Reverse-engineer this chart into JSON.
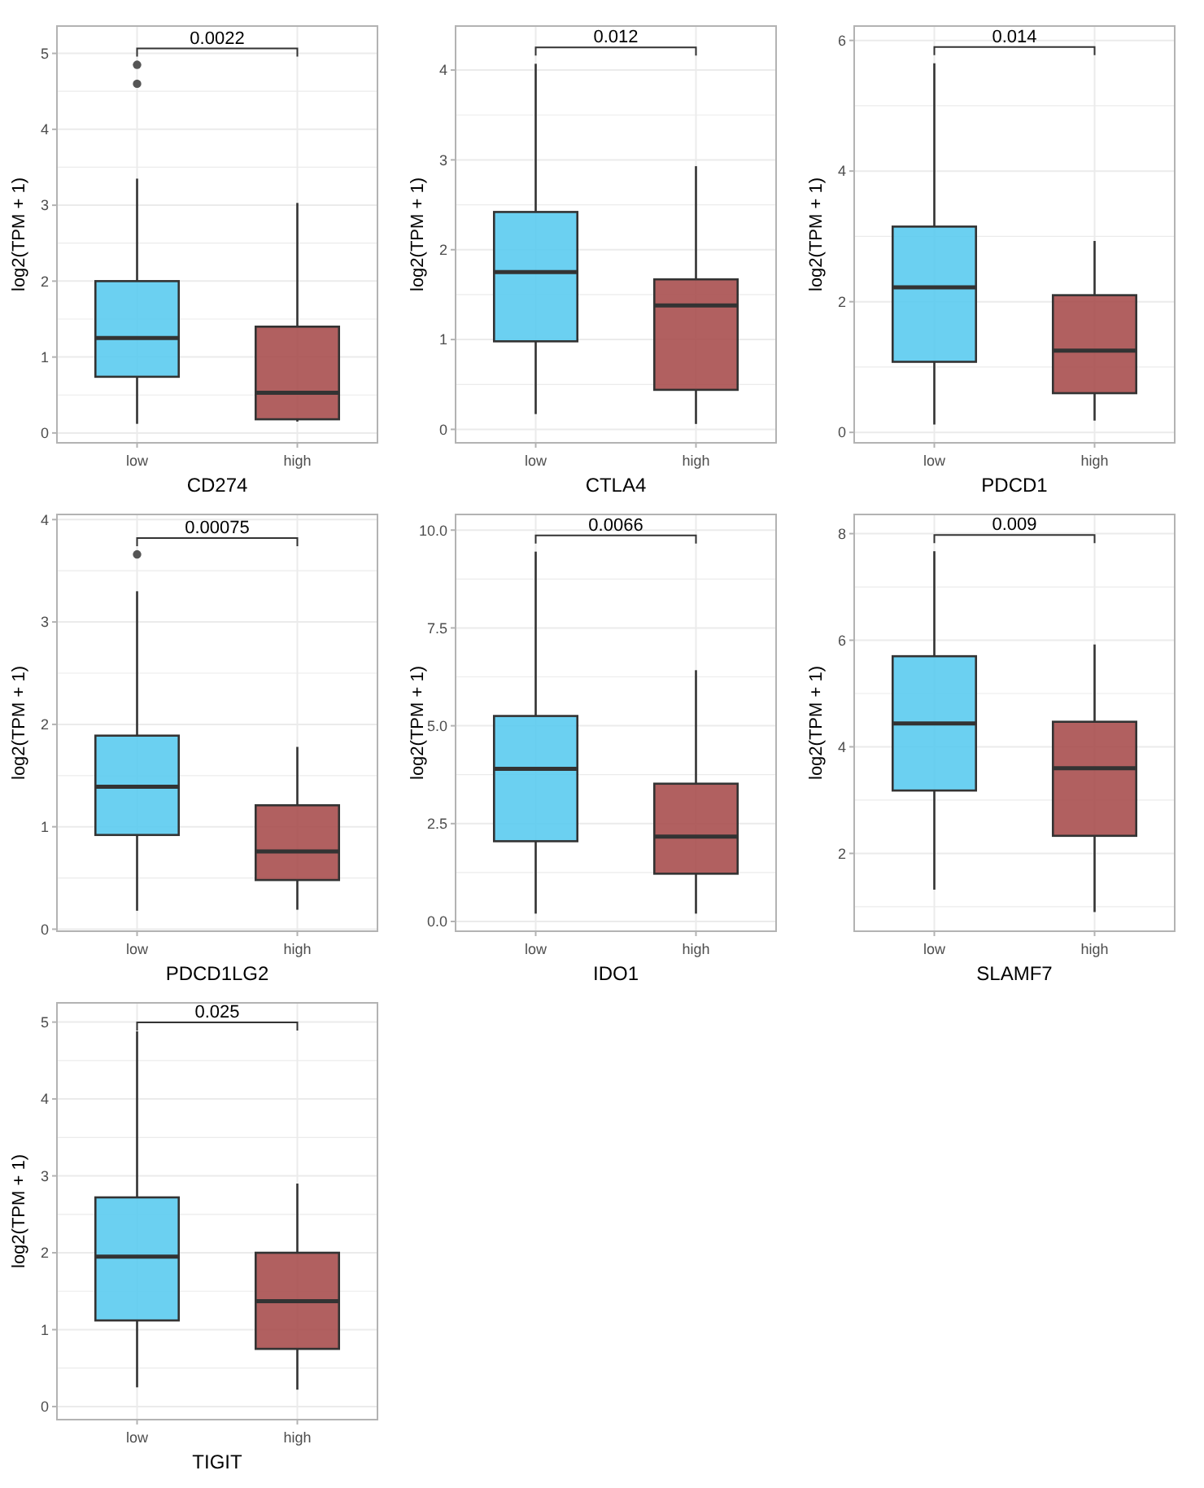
{
  "chart_data": [
    {
      "type": "box",
      "categories": [
        "low",
        "high"
      ],
      "xlabel": "CD274",
      "ylabel": "log2(TPM + 1)",
      "ylim": [
        -0.13,
        5.36
      ],
      "yticks": [
        0,
        {
          "value": 0.5,
          "label": null
        },
        1,
        {
          "value": 1.5,
          "label": null
        },
        2,
        {
          "value": 2.5,
          "label": null
        },
        3,
        {
          "value": 3.5,
          "label": null
        },
        4,
        {
          "value": 4.5,
          "label": null
        },
        5
      ],
      "grid": true,
      "colors": [
        "#5bcbf0",
        "#a94f4f"
      ],
      "annotations": [
        "0.0022"
      ],
      "boxes": [
        {
          "low": 0.12,
          "q1": 0.74,
          "median": 1.25,
          "q3": 2.0,
          "high": 3.35,
          "outliers": [
            4.6,
            4.85
          ]
        },
        {
          "low": 0.15,
          "q1": 0.18,
          "median": 0.53,
          "q3": 1.4,
          "high": 3.03
        }
      ]
    },
    {
      "type": "box",
      "categories": [
        "low",
        "high"
      ],
      "xlabel": "CTLA4",
      "ylabel": "log2(TPM + 1)",
      "ylim": [
        -0.15,
        4.49
      ],
      "yticks": [
        0,
        {
          "value": 0.5,
          "label": null
        },
        1,
        {
          "value": 1.5,
          "label": null
        },
        2,
        {
          "value": 2.5,
          "label": null
        },
        3,
        {
          "value": 3.5,
          "label": null
        },
        4
      ],
      "grid": true,
      "colors": [
        "#5bcbf0",
        "#a94f4f"
      ],
      "annotations": [
        "0.012"
      ],
      "boxes": [
        {
          "low": 0.17,
          "q1": 0.98,
          "median": 1.75,
          "q3": 2.42,
          "high": 4.07
        },
        {
          "low": 0.06,
          "q1": 0.44,
          "median": 1.38,
          "q3": 1.67,
          "high": 2.93
        }
      ]
    },
    {
      "type": "box",
      "categories": [
        "low",
        "high"
      ],
      "xlabel": "PDCD1",
      "ylabel": "log2(TPM + 1)",
      "ylim": [
        -0.16,
        6.22
      ],
      "yticks": [
        0,
        {
          "value": 1,
          "label": null
        },
        2,
        {
          "value": 3,
          "label": null
        },
        4,
        {
          "value": 5,
          "label": null
        },
        6
      ],
      "grid": true,
      "colors": [
        "#5bcbf0",
        "#a94f4f"
      ],
      "annotations": [
        "0.014"
      ],
      "boxes": [
        {
          "low": 0.12,
          "q1": 1.08,
          "median": 2.22,
          "q3": 3.15,
          "high": 5.65
        },
        {
          "low": 0.18,
          "q1": 0.6,
          "median": 1.25,
          "q3": 2.1,
          "high": 2.93
        }
      ]
    },
    {
      "type": "box",
      "categories": [
        "low",
        "high"
      ],
      "xlabel": "PDCD1LG2",
      "ylabel": "log2(TPM + 1)",
      "ylim": [
        -0.02,
        4.05
      ],
      "yticks": [
        0,
        {
          "value": 0.5,
          "label": null
        },
        1,
        {
          "value": 1.5,
          "label": null
        },
        2,
        {
          "value": 2.5,
          "label": null
        },
        3,
        {
          "value": 3.5,
          "label": null
        },
        4
      ],
      "grid": true,
      "colors": [
        "#5bcbf0",
        "#a94f4f"
      ],
      "annotations": [
        "0.00075"
      ],
      "boxes": [
        {
          "low": 0.18,
          "q1": 0.92,
          "median": 1.39,
          "q3": 1.89,
          "high": 3.3,
          "outliers": [
            3.66
          ]
        },
        {
          "low": 0.19,
          "q1": 0.48,
          "median": 0.76,
          "q3": 1.21,
          "high": 1.78
        }
      ]
    },
    {
      "type": "box",
      "categories": [
        "low",
        "high"
      ],
      "xlabel": "IDO1",
      "ylabel": "log2(TPM + 1)",
      "ylim": [
        -0.25,
        10.4
      ],
      "yticks": [
        {
          "value": 0,
          "label": "0.0"
        },
        {
          "value": 1.25,
          "label": null
        },
        {
          "value": 2.5,
          "label": "2.5"
        },
        {
          "value": 3.75,
          "label": null
        },
        {
          "value": 5,
          "label": "5.0"
        },
        {
          "value": 6.25,
          "label": null
        },
        {
          "value": 7.5,
          "label": "7.5"
        },
        {
          "value": 8.75,
          "label": null
        },
        {
          "value": 10,
          "label": "10.0"
        }
      ],
      "grid": true,
      "colors": [
        "#5bcbf0",
        "#a94f4f"
      ],
      "annotations": [
        "0.0066"
      ],
      "boxes": [
        {
          "low": 0.2,
          "q1": 2.05,
          "median": 3.9,
          "q3": 5.25,
          "high": 9.45
        },
        {
          "low": 0.2,
          "q1": 1.22,
          "median": 2.17,
          "q3": 3.52,
          "high": 6.42
        }
      ]
    },
    {
      "type": "box",
      "categories": [
        "low",
        "high"
      ],
      "xlabel": "SLAMF7",
      "ylabel": "log2(TPM + 1)",
      "ylim": [
        0.54,
        8.36
      ],
      "yticks": [
        {
          "value": 1,
          "label": null
        },
        2,
        {
          "value": 3,
          "label": null
        },
        4,
        {
          "value": 5,
          "label": null
        },
        6,
        {
          "value": 7,
          "label": null
        },
        8
      ],
      "grid": true,
      "colors": [
        "#5bcbf0",
        "#a94f4f"
      ],
      "annotations": [
        "0.009"
      ],
      "boxes": [
        {
          "low": 1.32,
          "q1": 3.18,
          "median": 4.44,
          "q3": 5.7,
          "high": 7.67
        },
        {
          "low": 0.9,
          "q1": 2.33,
          "median": 3.6,
          "q3": 4.47,
          "high": 5.92
        }
      ]
    },
    {
      "type": "box",
      "categories": [
        "low",
        "high"
      ],
      "xlabel": "TIGIT",
      "ylabel": "log2(TPM + 1)",
      "ylim": [
        -0.17,
        5.25
      ],
      "yticks": [
        0,
        {
          "value": 0.5,
          "label": null
        },
        1,
        {
          "value": 1.5,
          "label": null
        },
        2,
        {
          "value": 2.5,
          "label": null
        },
        3,
        {
          "value": 3.5,
          "label": null
        },
        4,
        {
          "value": 4.5,
          "label": null
        },
        5
      ],
      "grid": true,
      "colors": [
        "#5bcbf0",
        "#a94f4f"
      ],
      "annotations": [
        "0.025"
      ],
      "boxes": [
        {
          "low": 0.25,
          "q1": 1.12,
          "median": 1.95,
          "q3": 2.72,
          "high": 4.88
        },
        {
          "low": 0.22,
          "q1": 0.75,
          "median": 1.37,
          "q3": 2.0,
          "high": 2.9
        }
      ]
    }
  ]
}
